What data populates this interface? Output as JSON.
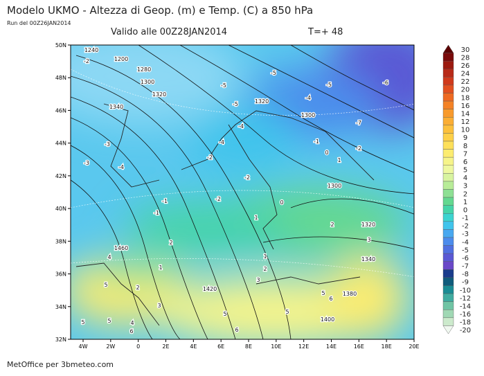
{
  "header": {
    "title": "Modelo UKMO - Altezza di Geop. (m) e Temp. (C) a 850 hPa",
    "run": "Run del 00Z26JAN2014",
    "valid": "Valido alle 00Z28JAN2014",
    "step": "T=+ 48"
  },
  "map": {
    "lat_labels": [
      "50N",
      "48N",
      "46N",
      "44N",
      "42N",
      "40N",
      "38N",
      "36N",
      "34N",
      "32N"
    ],
    "lon_labels": [
      "4W",
      "2W",
      "0",
      "2E",
      "4E",
      "6E",
      "8E",
      "10E",
      "12E",
      "14E",
      "16E",
      "18E",
      "20E"
    ],
    "contour_labels": [
      "1240",
      "-2",
      "1200",
      "1280",
      "1300",
      "1320",
      "1340",
      "-3",
      "-3",
      "-4",
      "-5",
      "-5",
      "-5",
      "-5",
      "1320",
      "-4",
      "-6",
      "1300",
      "-7",
      "-4",
      "-4",
      "-1",
      "-2",
      "0",
      "1",
      "-2",
      "-2",
      "1300",
      "-2",
      "0",
      "-1",
      "-1",
      "1",
      "2",
      "1320",
      "2",
      "3",
      "1460",
      "4",
      "1340",
      "1",
      "1",
      "2",
      "3",
      "5",
      "2",
      "1420",
      "5",
      "6",
      "1380",
      "3",
      "5",
      "5",
      "1400",
      "5",
      "4",
      "6",
      "5",
      "6"
    ]
  },
  "colorbar": {
    "labels": [
      30,
      28,
      26,
      24,
      22,
      20,
      18,
      16,
      14,
      12,
      10,
      9,
      8,
      7,
      6,
      5,
      4,
      3,
      2,
      1,
      0,
      -1,
      -2,
      -3,
      -4,
      -5,
      -6,
      -7,
      -8,
      -9,
      -10,
      -12,
      -14,
      -16,
      -18,
      -20
    ],
    "colors": [
      "#5a0000",
      "#7a0a0a",
      "#9c1a10",
      "#b82a18",
      "#d03a1c",
      "#e25020",
      "#ee6a22",
      "#f48226",
      "#f89a2c",
      "#fbae34",
      "#fcc03c",
      "#fdd048",
      "#fde05a",
      "#fcec70",
      "#f6f48a",
      "#eef8a0",
      "#d8f4a0",
      "#b8ec98",
      "#8ee094",
      "#64d890",
      "#46d4a8",
      "#3cd4d0",
      "#40c4ec",
      "#48a8f0",
      "#4c8cec",
      "#5070e0",
      "#5a58d4",
      "#6a48c8",
      "#1a3c8c",
      "#105c7c",
      "#1a8c94",
      "#40aca0",
      "#70c4a4",
      "#a0d8b4",
      "#cceacc",
      "#f0f8f0"
    ]
  },
  "footer": "MetOffice per 3bmeteo.com"
}
